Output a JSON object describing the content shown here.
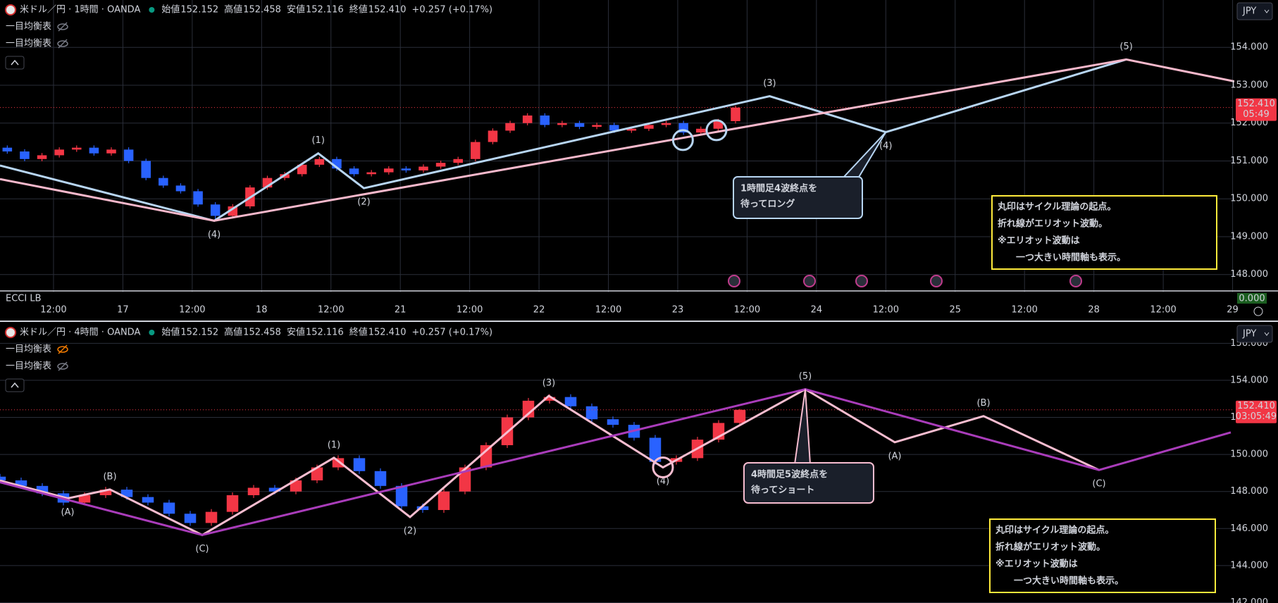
{
  "chart_data": [
    {
      "type": "candlestick",
      "symbol": "米ドル／円 · 1時間 · OANDA",
      "quote": [
        {
          "label": "始値",
          "value": "152.152"
        },
        {
          "label": "高値",
          "value": "152.458"
        },
        {
          "label": "安値",
          "value": "152.116"
        },
        {
          "label": "終値",
          "value": "152.410"
        }
      ],
      "change": "+0.257 (+0.17%)",
      "indicators": [
        "一目均衡表",
        "一目均衡表"
      ],
      "currency": "JPY",
      "last_price": {
        "value": 152.41,
        "label": "152.410"
      },
      "countdown": "05:49",
      "sub_indicator": "ECCI LB",
      "sub_value": "0.000",
      "up_color": "#f23645",
      "down_color": "#2962ff",
      "grid": true,
      "xlim": [
        2.74,
        216.3
      ],
      "xticks": [
        {
          "value": 12,
          "label": "12:00"
        },
        {
          "value": 24,
          "label": "17"
        },
        {
          "value": 36,
          "label": "12:00"
        },
        {
          "value": 48,
          "label": "18"
        },
        {
          "value": 60,
          "label": "12:00"
        },
        {
          "value": 72,
          "label": "21"
        },
        {
          "value": 84,
          "label": "12:00"
        },
        {
          "value": 96,
          "label": "22"
        },
        {
          "value": 108,
          "label": "12:00"
        },
        {
          "value": 120,
          "label": "23"
        },
        {
          "value": 132,
          "label": "12:00"
        },
        {
          "value": 144,
          "label": "24"
        },
        {
          "value": 156,
          "label": "12:00"
        },
        {
          "value": 168,
          "label": "25"
        },
        {
          "value": 180,
          "label": "12:00"
        },
        {
          "value": 192,
          "label": "28"
        },
        {
          "value": 204,
          "label": "12:00"
        },
        {
          "value": 216,
          "label": "29"
        }
      ],
      "ylim": [
        147.53,
        155.25
      ],
      "yticks": [
        {
          "value": 148,
          "label": "148.000"
        },
        {
          "value": 149,
          "label": "149.000"
        },
        {
          "value": 150,
          "label": "150.000"
        },
        {
          "value": 151,
          "label": "151.000"
        },
        {
          "value": 152,
          "label": "152.000"
        },
        {
          "value": 153,
          "label": "153.000"
        },
        {
          "value": 154,
          "label": "154.000"
        }
      ],
      "candles": [
        [
          4,
          151.35,
          151.41,
          151.19,
          151.25
        ],
        [
          7,
          151.25,
          151.31,
          150.99,
          151.05
        ],
        [
          10,
          151.05,
          151.21,
          150.99,
          151.15
        ],
        [
          13,
          151.15,
          151.36,
          151.09,
          151.3
        ],
        [
          16,
          151.3,
          151.41,
          151.24,
          151.35
        ],
        [
          19,
          151.35,
          151.41,
          151.14,
          151.2
        ],
        [
          22,
          151.2,
          151.36,
          151.14,
          151.3
        ],
        [
          25,
          151.3,
          151.36,
          150.94,
          151.0
        ],
        [
          28,
          151.0,
          151.06,
          150.49,
          150.55
        ],
        [
          31,
          150.55,
          150.61,
          150.29,
          150.35
        ],
        [
          34,
          150.35,
          150.41,
          150.14,
          150.2
        ],
        [
          37,
          150.2,
          150.26,
          149.79,
          149.85
        ],
        [
          40,
          149.85,
          149.91,
          149.42,
          149.55
        ],
        [
          43,
          149.55,
          149.86,
          149.49,
          149.8
        ],
        [
          46,
          149.8,
          150.36,
          149.74,
          150.3
        ],
        [
          49,
          150.3,
          150.61,
          150.24,
          150.55
        ],
        [
          52,
          150.55,
          150.71,
          150.49,
          150.65
        ],
        [
          55,
          150.65,
          150.96,
          150.59,
          150.9
        ],
        [
          58,
          150.9,
          151.11,
          150.84,
          151.05
        ],
        [
          61,
          151.05,
          151.11,
          150.74,
          150.8
        ],
        [
          64,
          150.8,
          150.86,
          150.59,
          150.65
        ],
        [
          67,
          150.65,
          150.76,
          150.59,
          150.7
        ],
        [
          70,
          150.7,
          150.86,
          150.64,
          150.8
        ],
        [
          73,
          150.8,
          150.86,
          150.69,
          150.75
        ],
        [
          76,
          150.75,
          150.91,
          150.69,
          150.85
        ],
        [
          79,
          150.85,
          151.01,
          150.79,
          150.95
        ],
        [
          82,
          150.95,
          151.11,
          150.89,
          151.05
        ],
        [
          85,
          151.05,
          151.56,
          150.99,
          151.5
        ],
        [
          88,
          151.5,
          151.86,
          151.44,
          151.8
        ],
        [
          91,
          151.8,
          152.06,
          151.74,
          152.0
        ],
        [
          94,
          152.0,
          152.26,
          151.94,
          152.2
        ],
        [
          97,
          152.2,
          152.26,
          151.89,
          151.95
        ],
        [
          100,
          151.95,
          152.06,
          151.89,
          152.0
        ],
        [
          103,
          152.0,
          152.06,
          151.84,
          151.9
        ],
        [
          106,
          151.9,
          152.01,
          151.84,
          151.95
        ],
        [
          109,
          151.95,
          152.01,
          151.74,
          151.8
        ],
        [
          112,
          151.8,
          151.91,
          151.74,
          151.85
        ],
        [
          115,
          151.85,
          152.01,
          151.79,
          151.95
        ],
        [
          118,
          151.95,
          152.06,
          151.89,
          152.0
        ],
        [
          121,
          152.0,
          152.06,
          151.69,
          151.75
        ],
        [
          124,
          151.75,
          151.91,
          151.69,
          151.85
        ],
        [
          127,
          151.85,
          152.11,
          151.79,
          152.05
        ],
        [
          130,
          152.05,
          152.46,
          151.99,
          152.41
        ]
      ],
      "waves": [
        {
          "color": "#b7d5f2",
          "x": [
            2.74,
            39.8,
            57.8,
            65.7,
            135.9,
            156,
            197.6
          ],
          "y": [
            150.88,
            149.42,
            151.2,
            150.28,
            152.71,
            151.76,
            153.68
          ],
          "labels": [
            null,
            "(4)",
            "(1)",
            "(2)",
            "(3)",
            "(4)",
            "(5)"
          ]
        },
        {
          "color": "#f6b8cb",
          "x": [
            2.74,
            39.8,
            197.6,
            216.3
          ],
          "y": [
            150.52,
            149.42,
            153.68,
            153.1
          ],
          "labels": [
            null,
            null,
            null,
            null
          ]
        }
      ],
      "cycle_points": {
        "color": "#b7d5f2",
        "x": [
          120.9,
          126.7
        ],
        "y": [
          151.55,
          151.81
        ]
      },
      "callout": {
        "color": "#b7d5f2",
        "lines": [
          "1時間足4波終点を",
          "待ってロング"
        ]
      },
      "note": {
        "color": "#ffeb3b",
        "lines": [
          "丸印はサイクル理論の起点。",
          "折れ線がエリオット波動。",
          "※エリオット波動は",
          "一つ大きい時間軸も表示。"
        ]
      }
    },
    {
      "type": "candlestick",
      "symbol": "米ドル／円 · 4時間 · OANDA",
      "quote": [
        {
          "label": "始値",
          "value": "152.152"
        },
        {
          "label": "高値",
          "value": "152.458"
        },
        {
          "label": "安値",
          "value": "152.116"
        },
        {
          "label": "終値",
          "value": "152.410"
        }
      ],
      "change": "+0.257 (+0.17%)",
      "indicators": [
        "一目均衡表",
        "一目均衡表"
      ],
      "currency": "JPY",
      "last_price": {
        "value": 152.41,
        "label": "152.410"
      },
      "countdown": "03:05:49",
      "up_color": "#f23645",
      "down_color": "#2962ff",
      "grid": true,
      "xlim": [
        0,
        175.2
      ],
      "ylim": [
        141.98,
        157.04
      ],
      "yticks": [
        {
          "value": 142,
          "label": "142.000"
        },
        {
          "value": 144,
          "label": "144.000"
        },
        {
          "value": 146,
          "label": "146.000"
        },
        {
          "value": 148,
          "label": "148.000"
        },
        {
          "value": 150,
          "label": "150.000"
        },
        {
          "value": 152,
          "label": "152.000"
        },
        {
          "value": 154,
          "label": "154.000"
        },
        {
          "value": 156,
          "label": "156.000"
        }
      ],
      "candles": [
        [
          0,
          148.8,
          148.95,
          148.45,
          148.6
        ],
        [
          3,
          148.6,
          148.75,
          148.15,
          148.3
        ],
        [
          6,
          148.3,
          148.45,
          147.75,
          147.9
        ],
        [
          9,
          147.9,
          148.05,
          147.25,
          147.4
        ],
        [
          12,
          147.4,
          147.95,
          147.25,
          147.8
        ],
        [
          15,
          147.8,
          148.25,
          147.65,
          148.1
        ],
        [
          18,
          148.1,
          148.25,
          147.55,
          147.7
        ],
        [
          21,
          147.7,
          147.85,
          147.25,
          147.4
        ],
        [
          24,
          147.4,
          147.55,
          146.65,
          146.8
        ],
        [
          27,
          146.8,
          146.95,
          146.15,
          146.3
        ],
        [
          30,
          146.3,
          147.05,
          146.15,
          146.9
        ],
        [
          33,
          146.9,
          147.95,
          146.75,
          147.8
        ],
        [
          36,
          147.8,
          148.35,
          147.65,
          148.2
        ],
        [
          39,
          148.2,
          148.35,
          147.85,
          148.0
        ],
        [
          42,
          148.0,
          148.75,
          147.85,
          148.6
        ],
        [
          45,
          148.6,
          149.45,
          148.45,
          149.3
        ],
        [
          48,
          149.3,
          149.95,
          149.15,
          149.8
        ],
        [
          51,
          149.8,
          149.95,
          148.95,
          149.1
        ],
        [
          54,
          149.1,
          149.25,
          148.15,
          148.3
        ],
        [
          57,
          148.3,
          148.45,
          147.05,
          147.2
        ],
        [
          60,
          147.2,
          147.35,
          146.85,
          147.0
        ],
        [
          63,
          147.0,
          148.15,
          146.85,
          148.0
        ],
        [
          66,
          148.0,
          149.45,
          147.85,
          149.3
        ],
        [
          69,
          149.3,
          150.65,
          149.15,
          150.5
        ],
        [
          72,
          150.5,
          152.15,
          150.35,
          152.0
        ],
        [
          75,
          152.0,
          153.05,
          151.85,
          152.9
        ],
        [
          78,
          152.9,
          153.25,
          152.75,
          153.1
        ],
        [
          81,
          153.1,
          153.25,
          152.45,
          152.6
        ],
        [
          84,
          152.6,
          152.75,
          151.75,
          151.9
        ],
        [
          87,
          151.9,
          152.05,
          151.45,
          151.6
        ],
        [
          90,
          151.6,
          151.75,
          150.75,
          150.9
        ],
        [
          93,
          150.9,
          151.05,
          149.45,
          149.6
        ],
        [
          96,
          149.6,
          149.95,
          149.45,
          149.8
        ],
        [
          99,
          149.8,
          150.95,
          149.65,
          150.8
        ],
        [
          102,
          150.8,
          151.85,
          150.65,
          151.7
        ],
        [
          105,
          151.7,
          152.46,
          151.55,
          152.41
        ]
      ],
      "waves": [
        {
          "color": "#f8bdd0",
          "x": [
            0,
            9.6,
            15.6,
            28.7,
            47.4,
            58.2,
            77.9,
            94.1,
            114.3,
            127,
            139.6,
            156
          ],
          "y": [
            148.59,
            147.63,
            148.11,
            145.65,
            149.82,
            146.62,
            153.16,
            149.3,
            153.52,
            150.66,
            152.07,
            149.16
          ],
          "labels": [
            null,
            "(A)",
            "(B)",
            null,
            "(1)",
            "(2)",
            "(3)",
            "(4)",
            null,
            "(A)",
            "(B)",
            "(C)"
          ]
        },
        {
          "color": "#a93cba",
          "x": [
            0,
            28.7,
            114.3,
            156,
            174.7
          ],
          "y": [
            148.5,
            145.65,
            153.52,
            149.16,
            151.19
          ],
          "labels": [
            null,
            "(C)",
            "(5)",
            null,
            null
          ]
        }
      ],
      "cycle_points": {
        "color": "#f8bdd0",
        "x": [
          94.1
        ],
        "y": [
          149.3
        ]
      },
      "callout": {
        "color": "#f8bdd0",
        "lines": [
          "4時間足5波終点を",
          "待ってショート"
        ]
      },
      "note": {
        "color": "#ffeb3b",
        "lines": [
          "丸印はサイクル理論の起点。",
          "折れ線がエリオット波動。",
          "※エリオット波動は",
          "一つ大きい時間軸も表示。"
        ]
      }
    }
  ]
}
